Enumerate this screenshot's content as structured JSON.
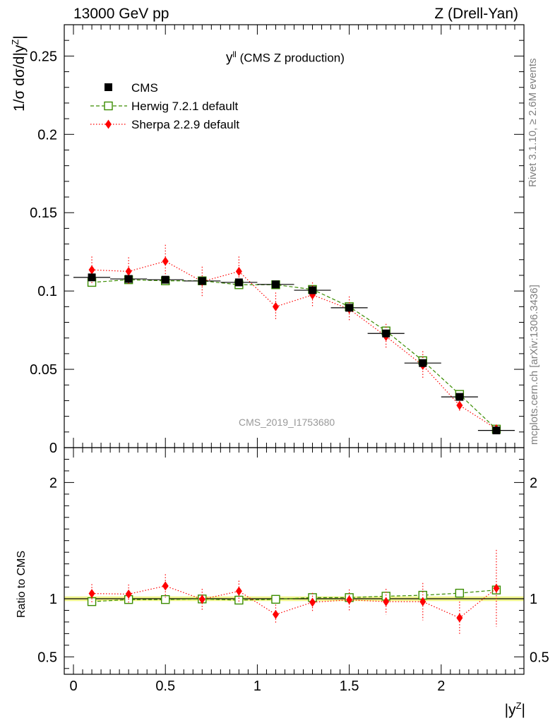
{
  "header": {
    "left": "13000 GeV pp",
    "right": "Z (Drell-Yan)"
  },
  "side_labels": {
    "rivet": "Rivet 3.1.10, ≥ 2.6M events",
    "mcplots": "mcplots.cern.ch [arXiv:1306.3436]"
  },
  "analysis_id": "CMS_2019_I1753680",
  "plot_title": {
    "main": "y",
    "sup": "ll",
    "rest": " (CMS Z production)"
  },
  "axes": {
    "upper_ylabel": {
      "prefix": "1/σ dσ/d|y",
      "sup": "Z",
      "suffix": "|"
    },
    "lower_ylabel": "Ratio to CMS",
    "xlabel": {
      "prefix": "|y",
      "sup": "Z",
      "suffix": "|"
    }
  },
  "legend": {
    "cms": "CMS",
    "herwig": "Herwig 7.2.1 default",
    "sherpa": "Sherpa 2.2.9 default"
  },
  "colors": {
    "cms": "#000000",
    "herwig": "#3a8c00",
    "sherpa": "#ff0000",
    "band": "#f0f58c",
    "band_line": "#a8d400",
    "side_text": "#808080"
  },
  "chart_data": {
    "type": "line",
    "x": [
      0.1,
      0.3,
      0.5,
      0.7,
      0.9,
      1.1,
      1.3,
      1.5,
      1.7,
      1.9,
      2.1,
      2.3
    ],
    "x_binwidth": 0.2,
    "xlim": [
      -0.05,
      2.45
    ],
    "xticks": [
      0,
      0.5,
      1,
      1.5,
      2
    ],
    "xtick_labels": [
      "0",
      "0.5",
      "1",
      "1.5",
      "2"
    ],
    "upper": {
      "ylim": [
        0,
        0.27
      ],
      "yticks": [
        0,
        0.05,
        0.1,
        0.15,
        0.2,
        0.25
      ],
      "ytick_labels": [
        "0",
        "0.05",
        "0.1",
        "0.15",
        "0.2",
        "0.25"
      ],
      "series": [
        {
          "name": "CMS",
          "key": "cms",
          "marker": "square-filled",
          "values": [
            0.1087,
            0.1077,
            0.1072,
            0.1064,
            0.1055,
            0.1042,
            0.1005,
            0.0893,
            0.0729,
            0.054,
            0.0324,
            0.011
          ],
          "errors": [
            0.001,
            0.001,
            0.001,
            0.001,
            0.001,
            0.001,
            0.001,
            0.0009,
            0.0008,
            0.0007,
            0.0005,
            0.0003
          ]
        },
        {
          "name": "Herwig 7.2.1 default",
          "key": "herwig",
          "marker": "square-open",
          "linestyle": "dashed",
          "values": [
            0.1055,
            0.1072,
            0.1065,
            0.1065,
            0.104,
            0.104,
            0.101,
            0.09,
            0.0745,
            0.0555,
            0.034,
            0.0118
          ],
          "errors": [
            0.0005,
            0.0005,
            0.0005,
            0.0005,
            0.0005,
            0.0005,
            0.0005,
            0.0005,
            0.0004,
            0.0004,
            0.0003,
            0.0002
          ]
        },
        {
          "name": "Sherpa 2.2.9 default",
          "key": "sherpa",
          "marker": "diamond-filled",
          "linestyle": "dotted",
          "values": [
            0.1135,
            0.1125,
            0.119,
            0.106,
            0.1125,
            0.09,
            0.0975,
            0.0885,
            0.071,
            0.0525,
            0.027,
            0.012
          ],
          "errors": [
            0.0085,
            0.009,
            0.0105,
            0.0095,
            0.0095,
            0.009,
            0.008,
            0.008,
            0.008,
            0.009,
            0.0045,
            0.0025
          ]
        }
      ]
    },
    "lower": {
      "ylim": [
        0.35,
        2.3
      ],
      "yticks": [
        0.5,
        1,
        2
      ],
      "ytick_labels": [
        "0.5",
        "1",
        "2"
      ],
      "reference": 1,
      "band": [
        0.98,
        1.02
      ],
      "series": [
        {
          "name": "Herwig 7.2.1 default",
          "key": "herwig",
          "marker": "square-open",
          "linestyle": "dashed",
          "values": [
            0.975,
            0.993,
            0.993,
            0.998,
            0.988,
            0.995,
            1.01,
            1.01,
            1.022,
            1.03,
            1.048,
            1.075
          ],
          "errors": [
            0.005,
            0.005,
            0.005,
            0.005,
            0.005,
            0.005,
            0.005,
            0.006,
            0.006,
            0.007,
            0.008,
            0.015
          ]
        },
        {
          "name": "Sherpa 2.2.9 default",
          "key": "sherpa",
          "marker": "diamond-filled",
          "linestyle": "dotted",
          "values": [
            1.045,
            1.04,
            1.11,
            0.995,
            1.065,
            0.865,
            0.97,
            0.99,
            0.975,
            0.975,
            0.835,
            1.09
          ],
          "errors": [
            0.08,
            0.082,
            0.1,
            0.09,
            0.09,
            0.085,
            0.08,
            0.09,
            0.11,
            0.16,
            0.14,
            0.33
          ]
        }
      ]
    }
  }
}
